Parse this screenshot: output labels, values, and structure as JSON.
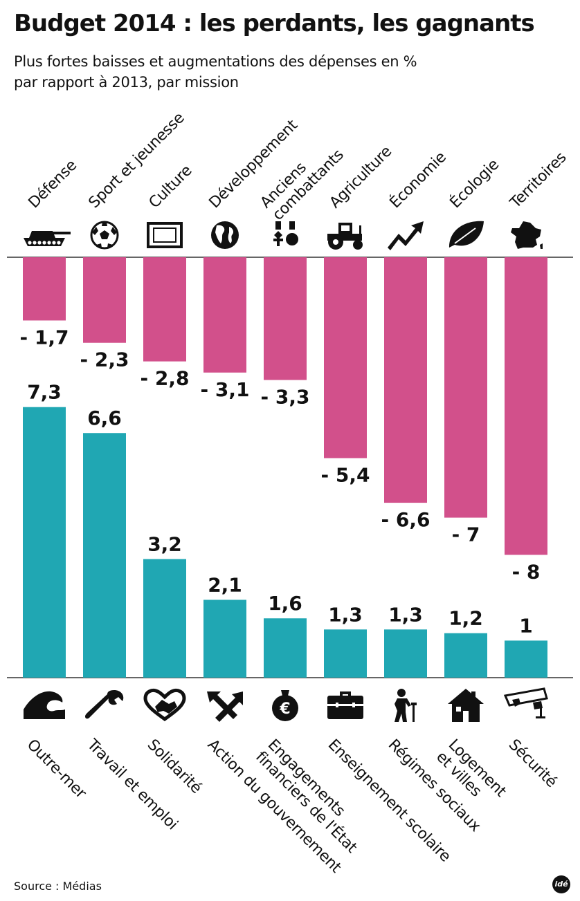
{
  "header": {
    "title": "Budget 2014 : les perdants, les gagnants",
    "subtitle_lines": [
      "Plus fortes baisses et augmentations des dépenses en %",
      "par rapport à 2013, par mission"
    ]
  },
  "footer": {
    "source": "Source : Médias",
    "logo": "idé"
  },
  "colors": {
    "negative": "#d2508b",
    "positive": "#20a7b3",
    "text": "#111111",
    "axis": "#333333"
  },
  "chart_data": [
    {
      "type": "bar",
      "title": "",
      "series": [
        {
          "name": "",
          "categories": [
            [
              "Défense"
            ],
            [
              "Sport et jeunesse"
            ],
            [
              "Culture"
            ],
            [
              "Développement"
            ],
            [
              "Anciens",
              "combattants"
            ],
            [
              "Agriculture"
            ],
            [
              "Économie"
            ],
            [
              "Écologie"
            ],
            [
              "Territoires"
            ]
          ],
          "icons": [
            "tank-icon",
            "soccer-ball-icon",
            "picture-frame-icon",
            "globe-icon",
            "medals-icon",
            "tractor-icon",
            "rising-arrow-icon",
            "leaf-icon",
            "france-map-icon"
          ],
          "values": [
            -1.7,
            -2.3,
            -2.8,
            -3.1,
            -3.3,
            -5.4,
            -6.6,
            -7,
            -8
          ],
          "labels": [
            "- 1,7",
            "- 2,3",
            "- 2,8",
            "- 3,1",
            "- 3,3",
            "- 5,4",
            "- 6,6",
            "- 7",
            "- 8"
          ]
        }
      ]
    },
    {
      "type": "bar",
      "title": "",
      "series": [
        {
          "name": "",
          "categories": [
            [
              "Outre-mer"
            ],
            [
              "Travail et emploi"
            ],
            [
              "Solidarité"
            ],
            [
              "Action du gouvernement"
            ],
            [
              "Engagements",
              "financiers de l'État"
            ],
            [
              "Enseignement scolaire"
            ],
            [
              "Régimes sociaux"
            ],
            [
              "Logement",
              "et villes"
            ],
            [
              "Sécurité"
            ]
          ],
          "icons": [
            "wave-icon",
            "wrench-icon",
            "heart-handshake-icon",
            "crossed-arrows-icon",
            "money-bag-icon",
            "briefcase-icon",
            "elderly-person-icon",
            "house-icon",
            "surveillance-camera-icon"
          ],
          "values": [
            7.3,
            6.6,
            3.2,
            2.1,
            1.6,
            1.3,
            1.3,
            1.2,
            1
          ],
          "labels": [
            "7,3",
            "6,6",
            "3,2",
            "2,1",
            "1,6",
            "1,3",
            "1,3",
            "1,2",
            "1"
          ]
        }
      ]
    }
  ]
}
